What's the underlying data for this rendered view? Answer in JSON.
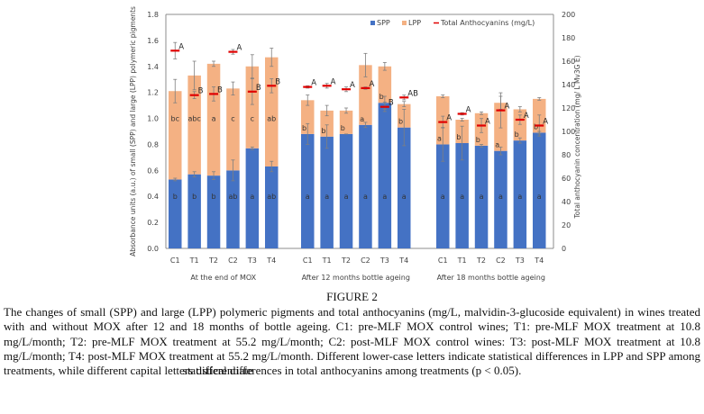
{
  "figure": {
    "label": "FIGURE 2",
    "caption_main": "The changes of small (SPP) and large (LPP) polymeric pigments and total anthocyanins (mg/L, malvidin-3-glucoside equivalent) in wines treated with and without MOX after 12 and 18 months of bottle ageing. C1: pre-MLF MOX control wines; T1: pre-MLF MOX treatment at 10.8 mg/L/month; T2: pre-MLF MOX treatment at 55.2 mg/L/month; C2: post-MLF MOX control wines: T3: post-MLF MOX treatment at 10.8 mg/L/month; T4: post-MLF MOX treatment at 55.2 mg/L/month. Different lower-case letters indicate statistical differences in LPP and SPP among treatments, while different capital letters differentiate",
    "caption_last": "statistical differences in total anthocyanins among treatments (p < 0.05)."
  },
  "chart_data": {
    "type": "bar",
    "stacked": true,
    "title": "",
    "ylabel": "Absorbance units (a.u.) of small (SPP) and large (LPP) polymeric pigments",
    "y2label": "Total anthocyanin concentration (mg/ L Mv3G E)",
    "ylim": [
      0,
      1.8
    ],
    "y2lim": [
      0,
      200
    ],
    "yticks": [
      "0.0",
      "0.2",
      "0.4",
      "0.6",
      "0.8",
      "1.0",
      "1.2",
      "1.4",
      "1.6",
      "1.8"
    ],
    "y2ticks": [
      "0",
      "20",
      "40",
      "60",
      "80",
      "100",
      "120",
      "140",
      "160",
      "180",
      "200"
    ],
    "grid": false,
    "legend_position": "top-right",
    "legend": [
      {
        "name": "SPP",
        "color": "#4472C4",
        "kind": "square"
      },
      {
        "name": "LPP",
        "color": "#F4B183",
        "kind": "square"
      },
      {
        "name": "Total Anthocyanins (mg/L)",
        "color": "#E00000",
        "kind": "dash"
      }
    ],
    "categories": [
      "C1",
      "T1",
      "T2",
      "C2",
      "T3",
      "T4"
    ],
    "groups": [
      {
        "label": "At the end of MOX",
        "spp": [
          0.53,
          0.57,
          0.56,
          0.6,
          0.77,
          0.63
        ],
        "spp_err": [
          0.01,
          0.02,
          0.03,
          0.08,
          0.01,
          0.04
        ],
        "lpp": [
          0.68,
          0.76,
          0.86,
          0.63,
          0.63,
          0.84
        ],
        "total_err": [
          0.09,
          0.11,
          0.02,
          0.05,
          0.09,
          0.07
        ],
        "spp_letters": [
          "b",
          "b",
          "b",
          "ab",
          "a",
          "ab"
        ],
        "lpp_letters": [
          "bc",
          "abc",
          "a",
          "c",
          "c",
          "ab"
        ],
        "anthocyanins": [
          169,
          131,
          132,
          168,
          134,
          139
        ],
        "anthocyanins_err": [
          7,
          3,
          6,
          2,
          11,
          6
        ],
        "anthocyanin_letters": [
          "A",
          "B",
          "B",
          "A",
          "B",
          "B"
        ]
      },
      {
        "label": "After 12 months bottle ageing",
        "spp": [
          0.88,
          0.86,
          0.88,
          0.95,
          1.12,
          0.93
        ],
        "spp_err": [
          0.08,
          0.09,
          0.0,
          0.02,
          0.05,
          0.14
        ],
        "lpp": [
          0.26,
          0.2,
          0.18,
          0.46,
          0.28,
          0.18
        ],
        "total_err": [
          0.04,
          0.04,
          0.02,
          0.09,
          0.03,
          0.02
        ],
        "spp_letters": [
          "b",
          "b",
          "b",
          "a",
          "b",
          "b"
        ],
        "lpp_letters": [
          "",
          "",
          "",
          "",
          "",
          ""
        ],
        "anthocyanins": [
          138,
          139,
          136,
          137,
          121,
          129
        ],
        "anthocyanins_err": [
          1,
          2,
          2,
          1,
          4,
          2
        ],
        "anthocyanin_letters": [
          "A",
          "A",
          "A",
          "A",
          "B",
          "AB"
        ]
      },
      {
        "label": "After 18 months bottle ageing",
        "spp": [
          0.8,
          0.81,
          0.79,
          0.75,
          0.83,
          0.89
        ],
        "spp_err": [
          0.13,
          0.13,
          0.01,
          0.03,
          0.02,
          0.01
        ],
        "lpp": [
          0.37,
          0.18,
          0.25,
          0.37,
          0.24,
          0.26
        ],
        "total_err": [
          0.01,
          0.01,
          0.01,
          0.05,
          0.02,
          0.01
        ],
        "spp_letters": [
          "a",
          "b",
          "b",
          "a",
          "b",
          "b"
        ],
        "lpp_letters": [
          "",
          "",
          "",
          "",
          "",
          ""
        ],
        "anthocyanins": [
          108,
          115,
          105,
          118,
          110,
          105
        ],
        "anthocyanins_err": [
          5,
          1,
          6,
          15,
          4,
          9
        ],
        "anthocyanin_letters": [
          "A",
          "A",
          "A",
          "A",
          "A",
          "A"
        ]
      }
    ],
    "spp_group_inner_letters": [
      [
        "b",
        "b",
        "b",
        "ab",
        "a",
        "ab"
      ],
      [
        "a",
        "a",
        "a",
        "a",
        "a",
        "a"
      ],
      [
        "a",
        "a",
        "a",
        "a",
        "a",
        "a"
      ]
    ]
  }
}
